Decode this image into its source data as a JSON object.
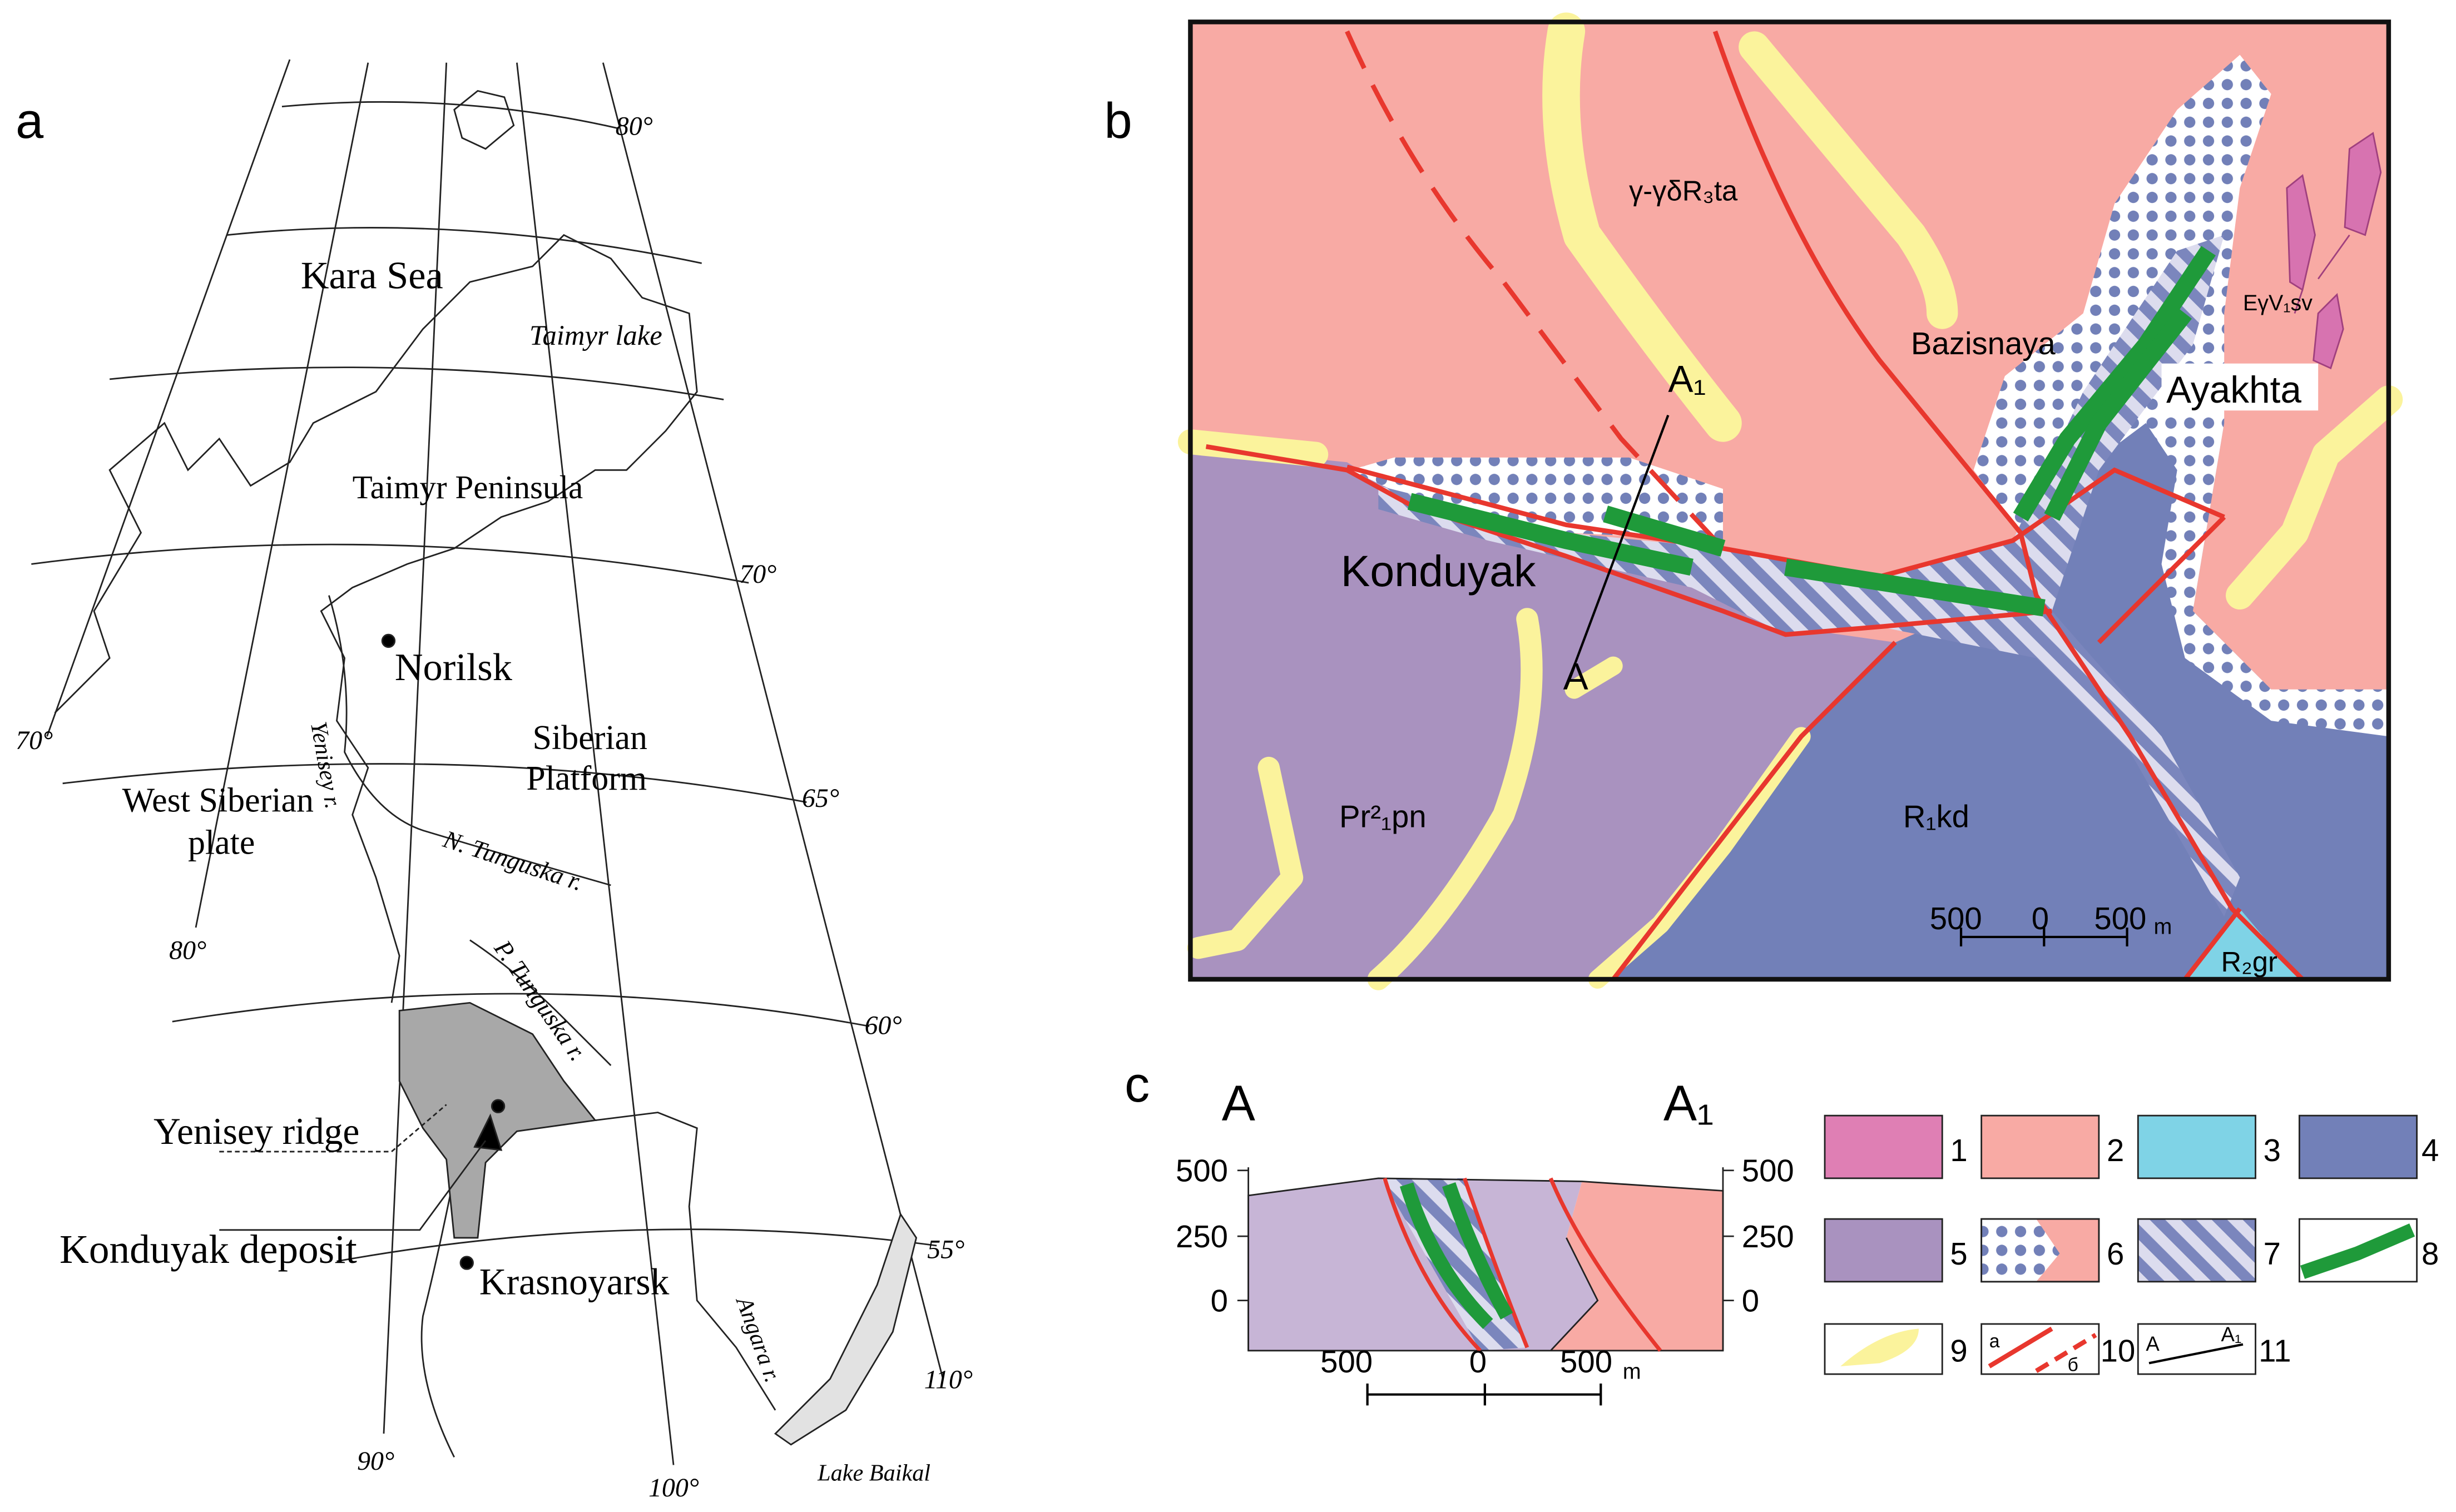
{
  "panel_a": {
    "letter": "a",
    "labels": {
      "kara_sea": "Kara Sea",
      "taimyr_lake": "Taimyr lake",
      "taimyr_peninsula": "Taimyr Peninsula",
      "norilsk": "Norilsk",
      "yenisey_river": "Yenisey r.",
      "siberian_platform": [
        "Siberian",
        "Platform"
      ],
      "west_siberian_plate": [
        "West Siberian",
        "plate"
      ],
      "n_tunguska": "N. Tunguska r.",
      "p_tunguska": "P. Tunguska r.",
      "yenisey_ridge": "Yenisey ridge",
      "konduyak_deposit": "Konduyak deposit",
      "krasnoyarsk": "Krasnoyarsk",
      "angara": "Angara r.",
      "lake_baikal": "Lake Baikal"
    },
    "latitudes": [
      "80°",
      "70°",
      "65°",
      "60°",
      "55°"
    ],
    "longitudes": [
      "70°",
      "80°",
      "90°",
      "100°",
      "110°"
    ]
  },
  "panel_b": {
    "letter": "b",
    "labels": {
      "granite": "γ-γδR₃ta",
      "bazisnaya": "Bazisnaya",
      "ayakhta": "Ayakhta",
      "ev_sv": "EγV₁sv",
      "a1": "A₁",
      "a": "A",
      "konduyak": "Konduyak",
      "pr_pn": "Pr²₁pn",
      "r_kd": "R₁kd",
      "r_gr": "R₂gr"
    },
    "scale": {
      "ticks": [
        "500",
        "0",
        "500"
      ],
      "unit": "m"
    }
  },
  "panel_c": {
    "letter": "c",
    "start": "A",
    "end": "A₁",
    "left_axis": [
      "500",
      "250",
      "0"
    ],
    "right_axis": [
      "500",
      "250",
      "0"
    ],
    "scale": {
      "ticks": [
        "500",
        "0",
        "500"
      ],
      "unit": "m"
    }
  },
  "legend": {
    "items": [
      {
        "number": "1"
      },
      {
        "number": "2"
      },
      {
        "number": "3"
      },
      {
        "number": "4"
      },
      {
        "number": "5"
      },
      {
        "number": "6"
      },
      {
        "number": "7"
      },
      {
        "number": "8"
      },
      {
        "number": "9"
      },
      {
        "number": "10",
        "marks": [
          "a",
          "б"
        ]
      },
      {
        "number": "11",
        "marks": [
          "A",
          "A₁"
        ]
      }
    ]
  }
}
